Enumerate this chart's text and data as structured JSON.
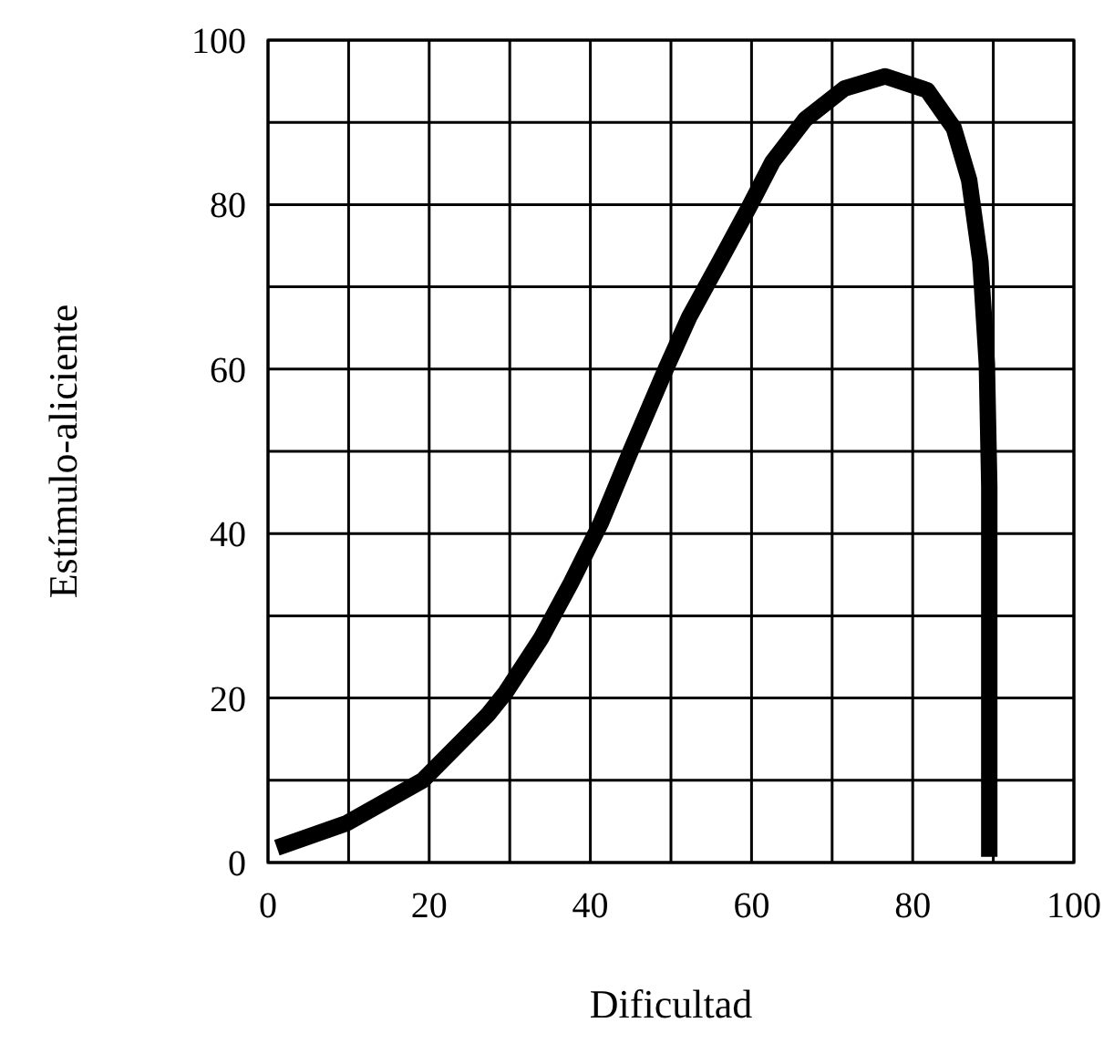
{
  "chart_data": {
    "type": "line",
    "xlabel": "Dificultad",
    "ylabel": "Estímulo-aliciente",
    "x": [
      1.1,
      9.8,
      19.2,
      27.3,
      29.5,
      33.9,
      37.6,
      41.3,
      44.9,
      49.4,
      52.3,
      56,
      59.7,
      62.6,
      66.7,
      71.5,
      76.6,
      81.8,
      85.1,
      87,
      88.4,
      89.2,
      89.5,
      89.5
    ],
    "series": [
      {
        "color": "#000000",
        "values": [
          1.8,
          4.8,
          10,
          18,
          20.7,
          27.3,
          34,
          41.3,
          49.8,
          60.1,
          66.4,
          73,
          79.7,
          85.2,
          90.4,
          94.1,
          95.6,
          93.9,
          89.3,
          83,
          73.1,
          60.6,
          45.8,
          0.7
        ]
      }
    ],
    "xlim": [
      0,
      100
    ],
    "ylim": [
      0,
      100
    ],
    "xticks": [
      0,
      {
        "value": 10,
        "label": null
      },
      20,
      {
        "value": 30,
        "label": null
      },
      40,
      {
        "value": 50,
        "label": null
      },
      60,
      {
        "value": 70,
        "label": null
      },
      80,
      {
        "value": 90,
        "label": null
      },
      100
    ],
    "yticks": [
      0,
      {
        "value": 10,
        "label": null
      },
      20,
      {
        "value": 30,
        "label": null
      },
      40,
      {
        "value": 50,
        "label": null
      },
      60,
      {
        "value": 70,
        "label": null
      },
      80,
      {
        "value": 90,
        "label": null
      },
      100
    ],
    "grid": true,
    "marker": "none",
    "line_style": "solid"
  }
}
